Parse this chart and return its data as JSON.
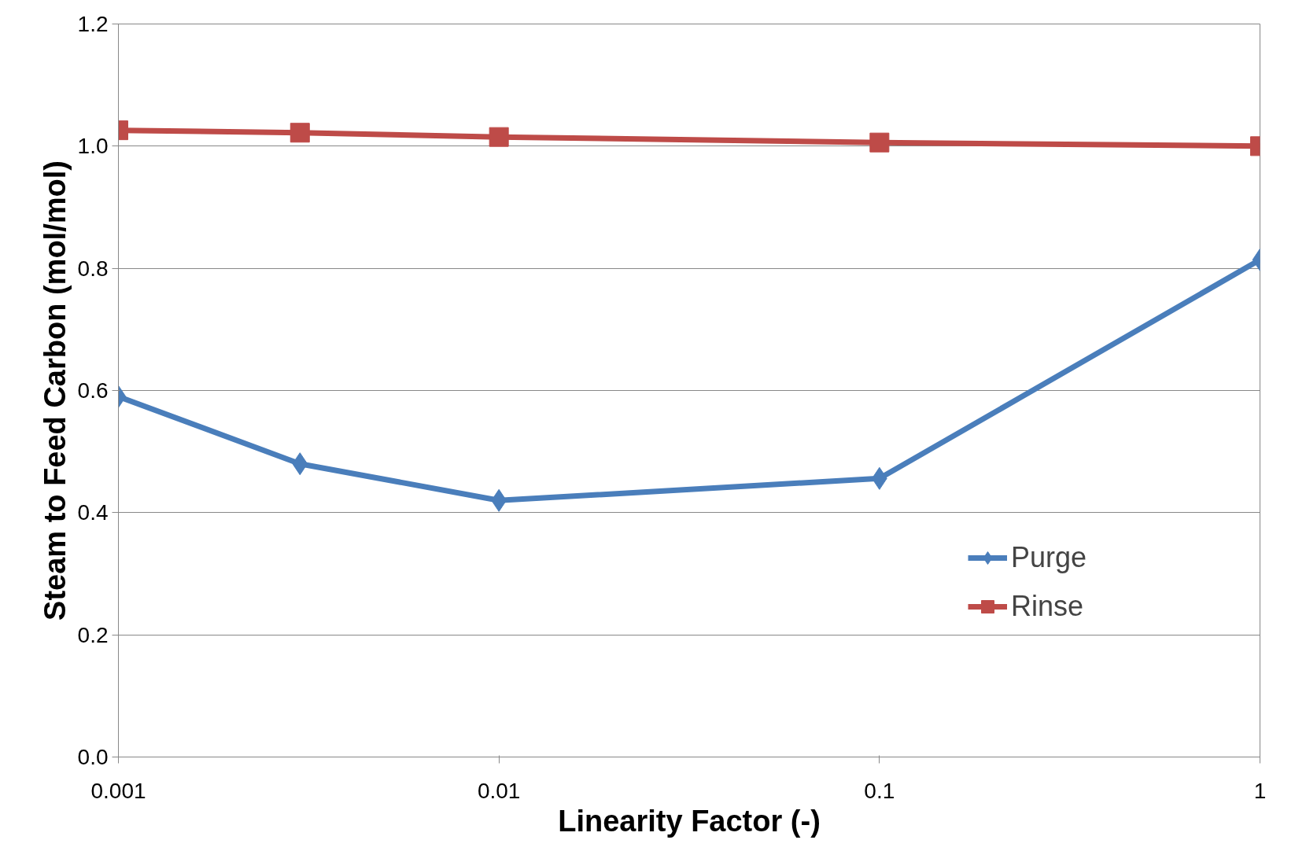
{
  "chart_data": {
    "type": "line",
    "xlabel": "Linearity Factor (-)",
    "ylabel": "Steam to Feed Carbon (mol/mol)",
    "log": "x",
    "xlim": [
      0.001,
      1
    ],
    "xticks": [
      0.001,
      0.01,
      0.1,
      1
    ],
    "ylim": [
      0,
      1.2
    ],
    "yticks": [
      {
        "value": 0,
        "label": "0.0"
      },
      {
        "value": 0.2,
        "label": "0.2"
      },
      {
        "value": 0.4,
        "label": "0.4"
      },
      {
        "value": 0.6,
        "label": "0.6"
      },
      {
        "value": 0.8,
        "label": "0.8"
      },
      {
        "value": 1,
        "label": "1.0"
      },
      {
        "value": 1.2,
        "label": "1.2"
      }
    ],
    "grid": "y",
    "legend": "right",
    "x": [
      0.001,
      0.003,
      0.01,
      0.1,
      1
    ],
    "series": [
      {
        "name": "Purge",
        "color": "#4a7ebb",
        "marker": "diamond",
        "values": [
          0.59,
          0.48,
          0.42,
          0.456,
          0.814
        ]
      },
      {
        "name": "Rinse",
        "color": "#be4b48",
        "marker": "square",
        "values": [
          1.026,
          1.022,
          1.015,
          1.006,
          1.0
        ]
      }
    ]
  }
}
